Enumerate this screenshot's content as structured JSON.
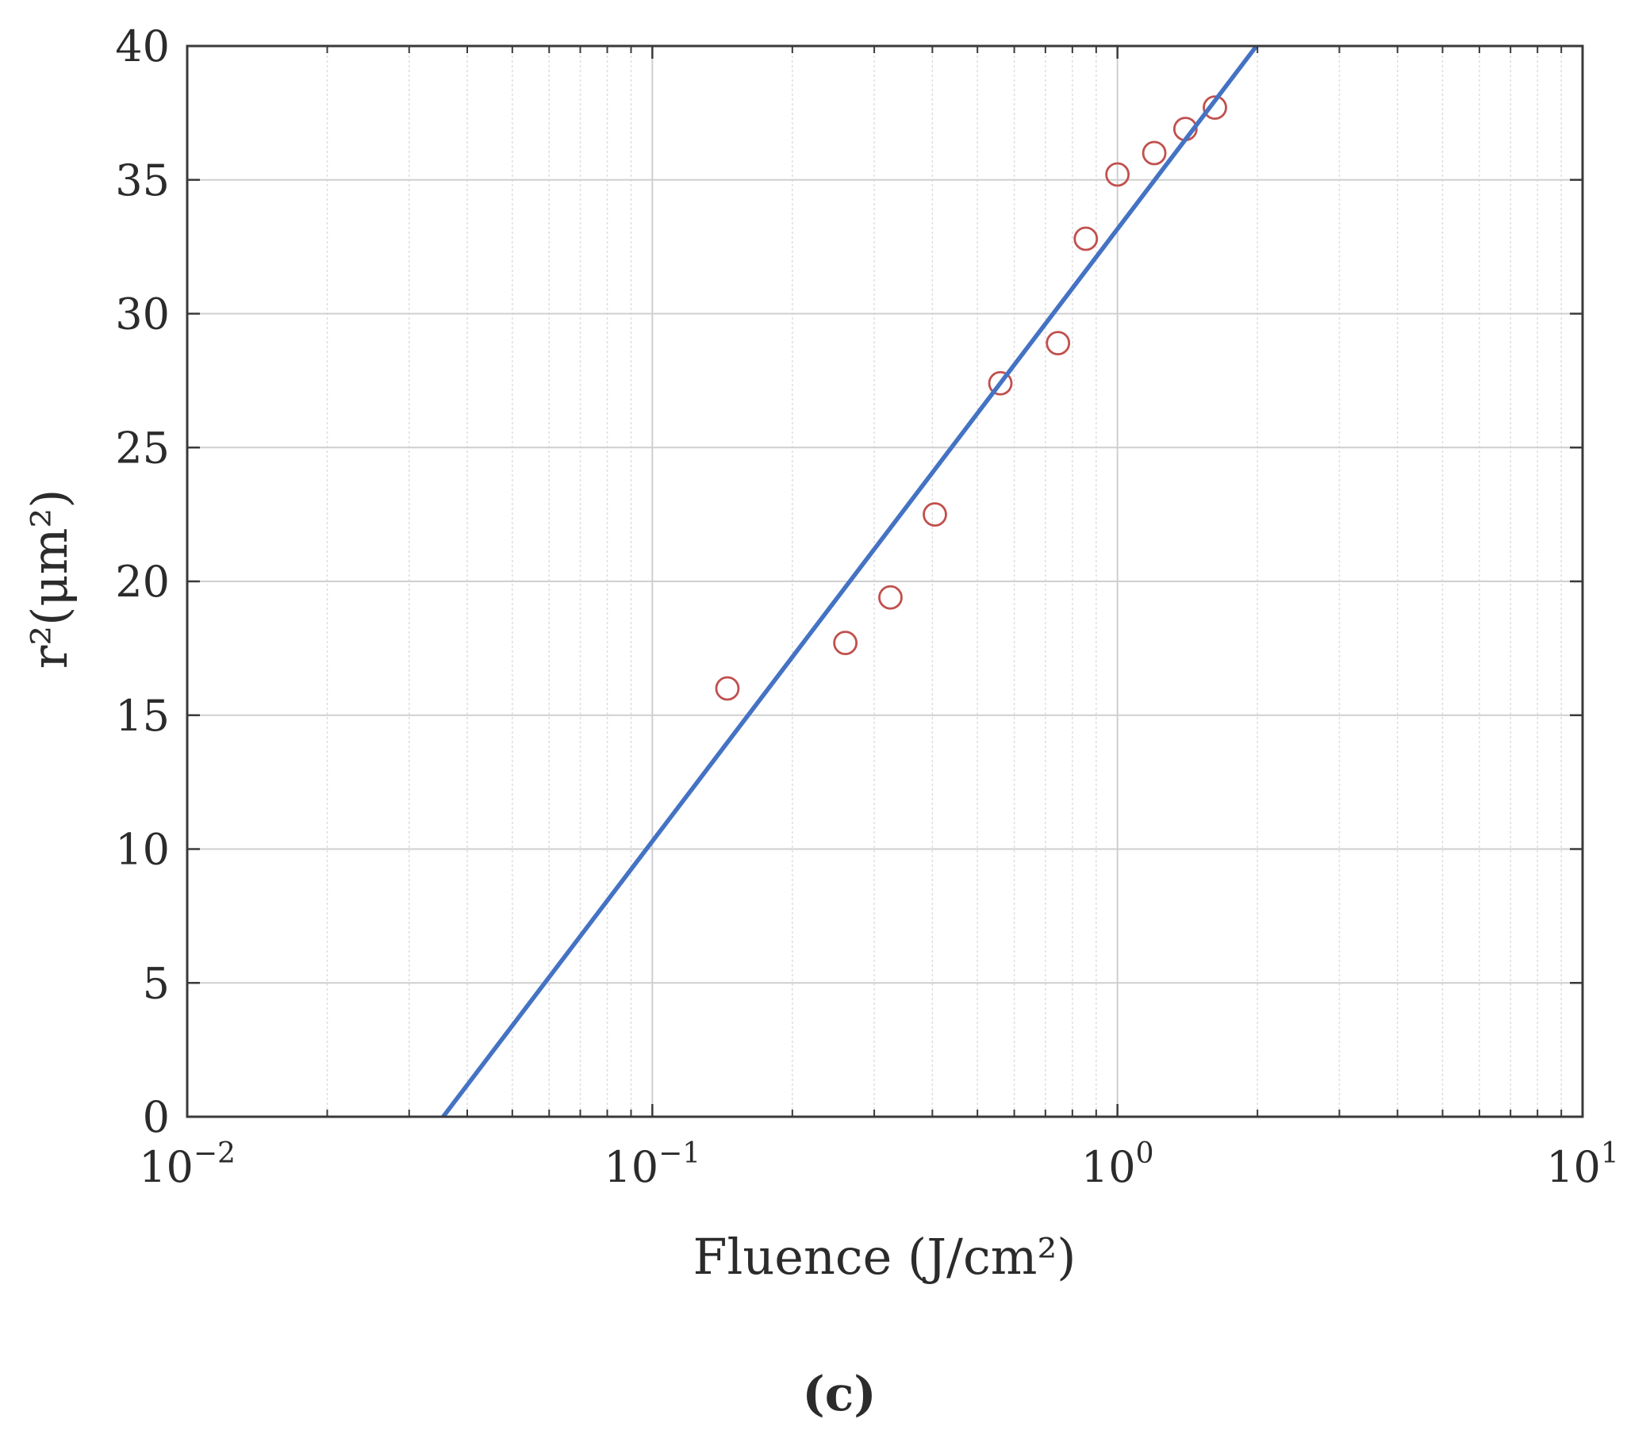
{
  "chart_data": {
    "type": "scatter",
    "xscale": "log",
    "xlim": [
      0.01,
      10
    ],
    "ylim": [
      0,
      40
    ],
    "grid": true,
    "minor_grid": true,
    "xlabel": "Fluence (J/cm²)",
    "ylabel": "r²(μm²)",
    "caption": "(c)",
    "x_ticks": [
      {
        "value": 0.01,
        "base": "10",
        "exp": "−2"
      },
      {
        "value": 0.1,
        "base": "10",
        "exp": "−1"
      },
      {
        "value": 1,
        "base": "10",
        "exp": "0"
      },
      {
        "value": 10,
        "base": "10",
        "exp": "1"
      }
    ],
    "y_ticks": [
      0,
      5,
      10,
      15,
      20,
      25,
      30,
      35,
      40
    ],
    "series": [
      {
        "kind": "scatter",
        "marker": "open-circle",
        "color": "#c0504d",
        "x": [
          0.145,
          0.26,
          0.325,
          0.405,
          0.56,
          0.745,
          0.855,
          1.0,
          1.2,
          1.4,
          1.62
        ],
        "y": [
          16.0,
          17.7,
          19.4,
          22.5,
          27.4,
          28.9,
          32.8,
          35.2,
          36.0,
          36.9,
          37.7
        ]
      },
      {
        "kind": "fit-line",
        "color": "#4472c4",
        "x": [
          0.0355,
          1.99
        ],
        "y": [
          0,
          40
        ]
      }
    ]
  }
}
